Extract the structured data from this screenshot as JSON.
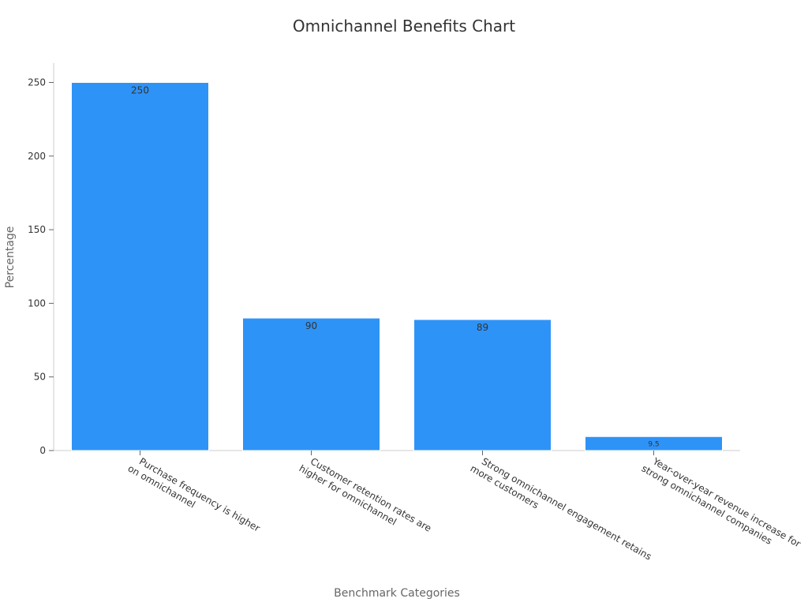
{
  "chart_data": {
    "type": "bar",
    "title": "Omnichannel Benefits Chart",
    "xlabel": "Benchmark Categories",
    "ylabel": "Percentage",
    "categories": [
      [
        "Purchase frequency is higher",
        "on omnichannel"
      ],
      [
        "Customer retention rates are",
        "higher for omnichannel"
      ],
      [
        "Strong omnichannel engagement retains",
        "more customers"
      ],
      [
        "Year-over-year revenue increase for",
        "strong omnichannel companies"
      ]
    ],
    "values": [
      250,
      90,
      89,
      9.5
    ],
    "data_labels": [
      "250",
      "90",
      "89",
      "9.5"
    ],
    "yticks": [
      0,
      50,
      100,
      150,
      200,
      250
    ],
    "ylim": [
      0,
      250
    ],
    "grid": false,
    "legend": "none",
    "colors": {
      "bar": "#2e93f7",
      "bar_edge": "#ffffff",
      "axis": "#cccccc"
    }
  }
}
